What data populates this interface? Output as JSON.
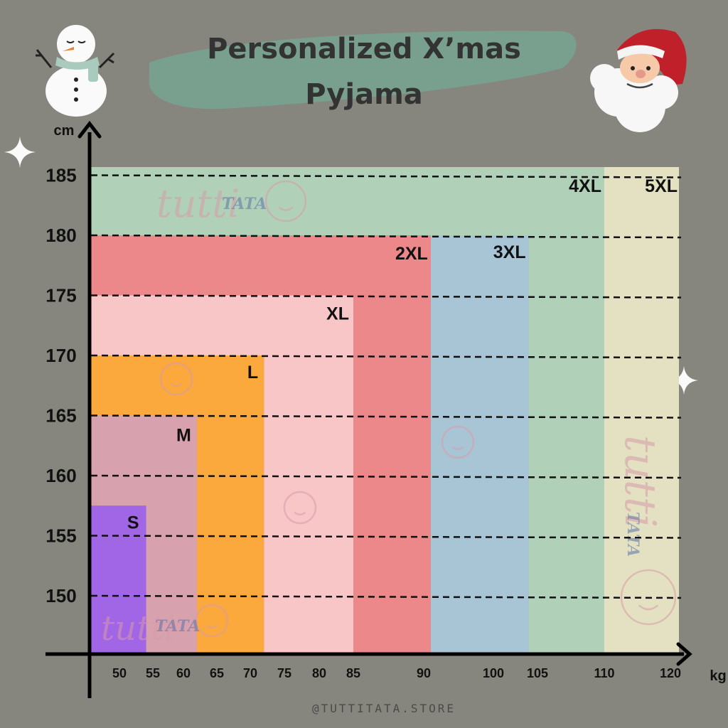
{
  "title_lines": [
    "Personalized X’mas",
    "Pyjama"
  ],
  "footer": "@TUTTITATA.STORE",
  "watermark": {
    "script": "tutti",
    "caps": "TATA"
  },
  "colors": {
    "background": "#86867e",
    "title_brush": "#79a08e",
    "S": "#a066e6",
    "M": "#d8a1ae",
    "L": "#fba93c",
    "XL": "#f9c6c8",
    "2XL": "#ec878a",
    "3XL": "#a8c5d6",
    "4XL": "#b0d1b8",
    "5XL": "#e3e1c1"
  },
  "chart_data": {
    "type": "heatmap",
    "title": "Personalized X’mas Pyjama",
    "xlabel": "kg",
    "ylabel": "cm",
    "x_ticks": [
      50,
      55,
      60,
      65,
      70,
      75,
      80,
      85,
      90,
      100,
      105,
      110,
      120
    ],
    "y_ticks": [
      150,
      155,
      160,
      165,
      170,
      175,
      180,
      185
    ],
    "y_range": [
      145,
      185
    ],
    "regions": [
      {
        "size": "S",
        "max_weight": 54,
        "max_height": 157.5
      },
      {
        "size": "M",
        "max_weight": 62,
        "max_height": 165
      },
      {
        "size": "L",
        "max_weight": 72,
        "max_height": 170
      },
      {
        "size": "XL",
        "max_weight": 85,
        "max_height": 175
      },
      {
        "size": "2XL",
        "max_weight": 91,
        "max_height": 180
      },
      {
        "size": "3XL",
        "max_weight": 104,
        "max_height": 180
      },
      {
        "size": "4XL",
        "max_weight": 110,
        "max_height": 185
      },
      {
        "size": "5XL",
        "max_weight": 120,
        "max_height": 185
      }
    ]
  }
}
